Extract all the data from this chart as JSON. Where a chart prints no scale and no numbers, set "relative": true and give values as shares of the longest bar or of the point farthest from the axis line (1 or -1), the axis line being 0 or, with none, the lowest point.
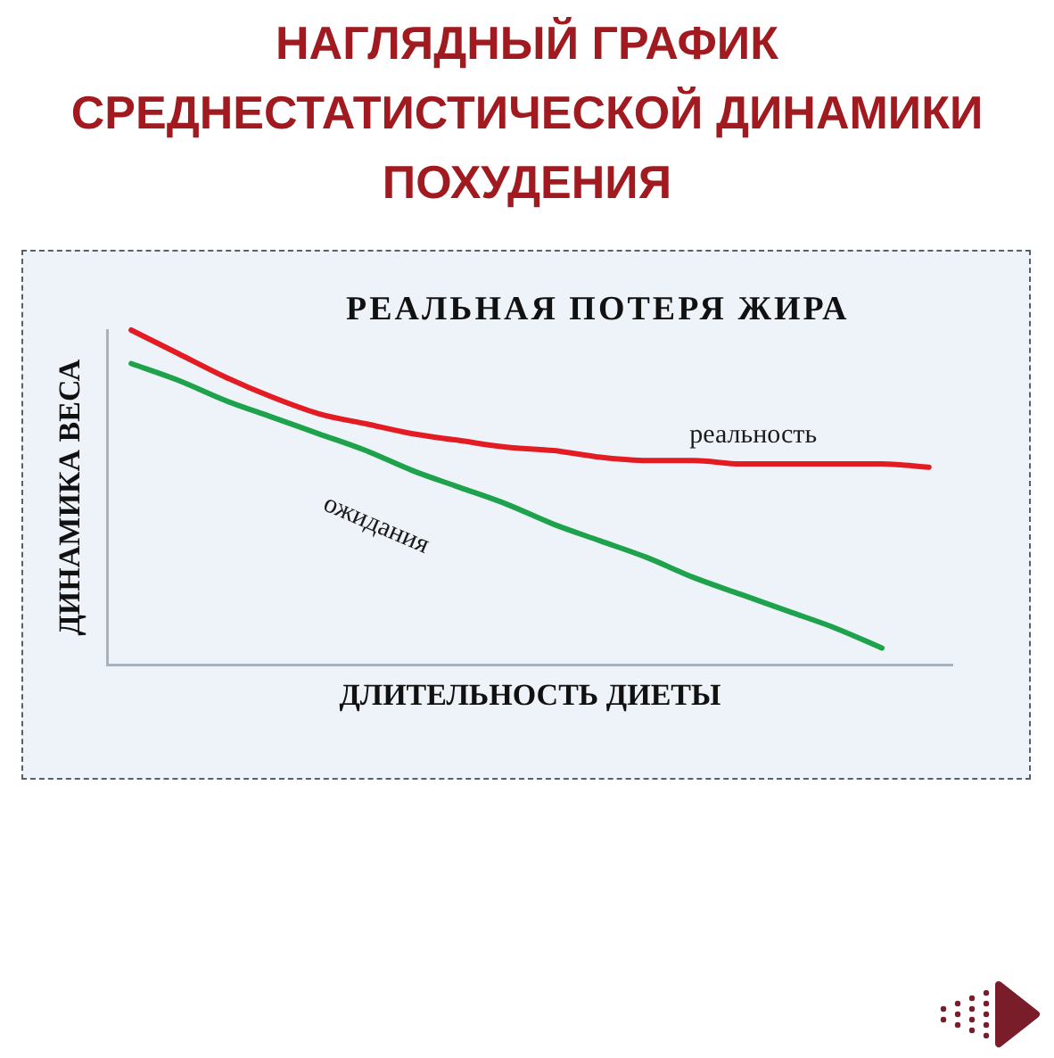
{
  "chart_data": {
    "type": "line",
    "title": "НАГЛЯДНЫЙ ГРАФИК СРЕДНЕСТАТИСТИЧЕСКОЙ ДИНАМИКИ ПОХУДЕНИЯ",
    "subtitle": "РЕАЛЬНАЯ ПОТЕРЯ ЖИРА",
    "xlabel": "ДЛИТЕЛЬНОСТЬ ДИЕТЫ",
    "ylabel": "ДИНАМИКА ВЕСА",
    "relative": true,
    "categories": [
      null,
      null,
      null,
      null,
      null,
      null,
      null,
      null,
      null,
      null,
      null,
      null,
      null,
      null,
      null,
      null,
      null,
      null
    ],
    "series": [
      {
        "name": "реальность",
        "color": "#e31b22",
        "values": [
          1.0,
          0.93,
          0.86,
          0.8,
          0.75,
          0.72,
          0.69,
          0.67,
          0.65,
          0.64,
          0.62,
          0.61,
          0.61,
          0.6,
          0.6,
          0.6,
          0.6,
          0.59
        ]
      },
      {
        "name": "ожидания",
        "color": "#1fa24c",
        "values": [
          0.9,
          0.85,
          0.79,
          0.74,
          0.69,
          0.64,
          0.58,
          0.53,
          0.48,
          0.42,
          0.37,
          0.32,
          0.26,
          0.21,
          0.16,
          0.11,
          0.05,
          null
        ]
      }
    ]
  }
}
